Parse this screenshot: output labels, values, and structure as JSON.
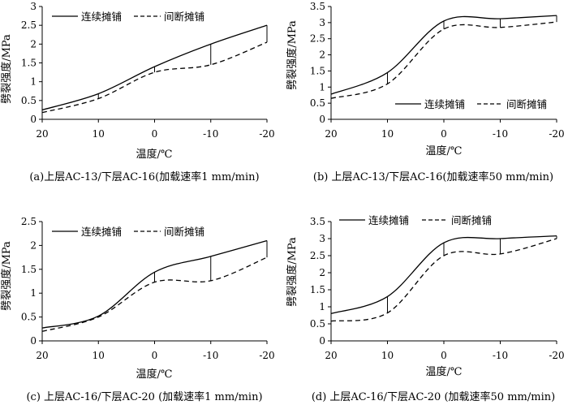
{
  "charts": [
    {
      "id": "a",
      "caption": "(a)上层AC-13/下层AC-16(加载速率1 mm/min)",
      "xlabel": "温度/℃",
      "ylabel": "劈裂强度/MPa",
      "legend": {
        "continuous": "连续摊铺",
        "intermittent": "间断摊铺"
      },
      "x_ticks": [
        "20",
        "10",
        "0",
        "-10",
        "-20"
      ],
      "y_ticks": [
        "0",
        "0.5",
        "1",
        "1.5",
        "2",
        "2.5",
        "3"
      ]
    },
    {
      "id": "b",
      "caption": "(b) 上层AC-13/下层AC-16(加载速率50 mm/min)",
      "xlabel": "温度/℃",
      "ylabel": "劈裂强度/MPa",
      "legend": {
        "continuous": "连续摊铺",
        "intermittent": "间断摊铺"
      },
      "x_ticks": [
        "20",
        "10",
        "0",
        "-10",
        "-20"
      ],
      "y_ticks": [
        "0",
        "0.5",
        "1",
        "1.5",
        "2",
        "2.5",
        "3",
        "3.5"
      ]
    },
    {
      "id": "c",
      "caption": "(c) 上层AC-16/下层AC-20 (加载速率1 mm/min)",
      "xlabel": "温度/℃",
      "ylabel": "劈裂强度/MPa",
      "legend": {
        "continuous": "连续摊铺",
        "intermittent": "间断摊铺"
      },
      "x_ticks": [
        "20",
        "10",
        "0",
        "-10",
        "-20"
      ],
      "y_ticks": [
        "0",
        "0.5",
        "1",
        "1.5",
        "2",
        "2.5"
      ]
    },
    {
      "id": "d",
      "caption": "(d) 上层AC-16/下层AC-20 (加载速率50 mm/min)",
      "xlabel": "温度/℃",
      "ylabel": "劈裂强度/MPa",
      "legend": {
        "continuous": "连续摊铺",
        "intermittent": "间断摊铺"
      },
      "x_ticks": [
        "20",
        "10",
        "0",
        "-10",
        "-20"
      ],
      "y_ticks": [
        "0",
        "0.5",
        "1",
        "1.5",
        "2",
        "2.5",
        "3",
        "3.5"
      ]
    }
  ],
  "chart_data": [
    {
      "type": "line",
      "title": "(a)上层AC-13/下层AC-16(加载速率1 mm/min)",
      "xlabel": "温度/℃",
      "ylabel": "劈裂强度/MPa",
      "x": [
        20,
        10,
        0,
        -10,
        -20
      ],
      "ylim": [
        0,
        3
      ],
      "series": [
        {
          "name": "连续摊铺",
          "style": "solid",
          "values": [
            0.25,
            0.68,
            1.4,
            2.0,
            2.5
          ]
        },
        {
          "name": "间断摊铺",
          "style": "dashed",
          "values": [
            0.18,
            0.55,
            1.25,
            1.45,
            2.05
          ]
        }
      ],
      "legend_position": "top-left"
    },
    {
      "type": "line",
      "title": "(b) 上层AC-13/下层AC-16(加载速率50 mm/min)",
      "xlabel": "温度/℃",
      "ylabel": "劈裂强度/MPa",
      "x": [
        20,
        10,
        0,
        -10,
        -20
      ],
      "ylim": [
        0,
        3.5
      ],
      "series": [
        {
          "name": "连续摊铺",
          "style": "solid",
          "values": [
            0.78,
            1.45,
            3.05,
            3.12,
            3.22
          ]
        },
        {
          "name": "间断摊铺",
          "style": "dashed",
          "values": [
            0.65,
            1.1,
            2.8,
            2.85,
            3.02
          ]
        }
      ],
      "legend_position": "bottom-right"
    },
    {
      "type": "line",
      "title": "(c) 上层AC-16/下层AC-20 (加载速率1 mm/min)",
      "xlabel": "温度/℃",
      "ylabel": "劈裂强度/MPa",
      "x": [
        20,
        10,
        0,
        -10,
        -20
      ],
      "ylim": [
        0,
        2.5
      ],
      "series": [
        {
          "name": "连续摊铺",
          "style": "solid",
          "values": [
            0.27,
            0.52,
            1.44,
            1.77,
            2.1
          ]
        },
        {
          "name": "间断摊铺",
          "style": "dashed",
          "values": [
            0.2,
            0.5,
            1.23,
            1.26,
            1.75
          ]
        }
      ],
      "legend_position": "top"
    },
    {
      "type": "line",
      "title": "(d) 上层AC-16/下层AC-20 (加载速率50 mm/min)",
      "xlabel": "温度/℃",
      "ylabel": "劈裂强度/MPa",
      "x": [
        20,
        10,
        0,
        -10,
        -20
      ],
      "ylim": [
        0,
        3.5
      ],
      "series": [
        {
          "name": "连续摊铺",
          "style": "solid",
          "values": [
            0.8,
            1.3,
            2.88,
            3.0,
            3.08
          ]
        },
        {
          "name": "间断摊铺",
          "style": "dashed",
          "values": [
            0.58,
            0.82,
            2.5,
            2.55,
            3.0
          ]
        }
      ],
      "legend_position": "top-left"
    }
  ]
}
